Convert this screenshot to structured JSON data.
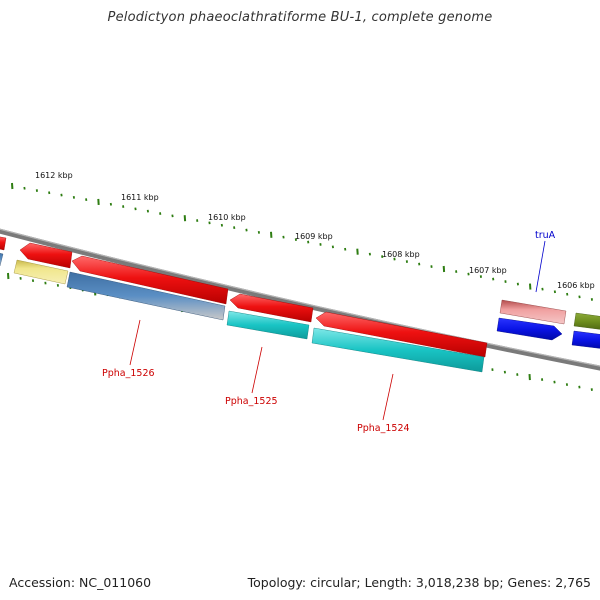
{
  "title": "Pelodictyon phaeoclathratiforme BU-1, complete genome",
  "footer": {
    "accession": "Accession: NC_011060",
    "summary": "Topology: circular; Length: 3,018,238 bp; Genes: 2,765"
  },
  "scale_labels": [
    "1612 kbp",
    "1611 kbp",
    "1610 kbp",
    "1609 kbp",
    "1608 kbp",
    "1607 kbp",
    "1606 kbp"
  ],
  "gene_labels": [
    {
      "text": "truA",
      "color": "#0000cc"
    },
    {
      "text": "Ppha_1526",
      "color": "#cc0000"
    },
    {
      "text": "Ppha_1525",
      "color": "#cc0000"
    },
    {
      "text": "Ppha_1524",
      "color": "#cc0000"
    }
  ],
  "colors": {
    "backbone": "#7a7a7a",
    "ticks": "#2e7d12",
    "red": "#ee1111",
    "cyan": "#19c4c4",
    "steel": "#4a7fb5",
    "khaki": "#f0e68c",
    "pink": "#e88c8c",
    "blue": "#0a14e6",
    "olive": "#6e8e1e"
  }
}
